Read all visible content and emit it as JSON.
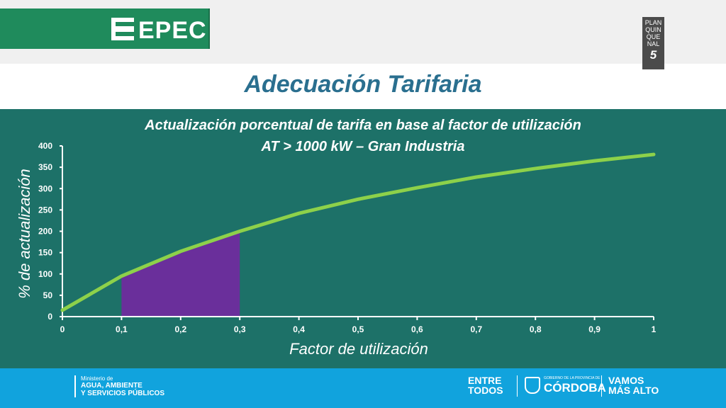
{
  "header": {
    "logo_text": "EPEC",
    "badge_lines": [
      "PLAN",
      "QUIN",
      "QUE",
      "NAL"
    ],
    "badge_number": "5"
  },
  "slide_title": "Adecuación Tarifaria",
  "footer": {
    "ministry_small": "Ministerio de",
    "ministry_line1": "AGUA, AMBIENTE",
    "ministry_line2": "Y SERVICIOS PÚBLICOS",
    "entre_line1": "ENTRE",
    "entre_line2": "TODOS",
    "cordoba_small": "GOBIERNO DE LA PROVINCIA DE",
    "cordoba_big": "CÓRDOBA",
    "vamos_line1": "VAMOS",
    "vamos_line2": "MÁS ALTO"
  },
  "colors": {
    "line": "#8dd14a",
    "shaded_area": "#6a2f9b",
    "panel": "#1d7168",
    "title": "#2a6f8f"
  },
  "chart_data": {
    "type": "line",
    "title": "Actualización porcentual de tarifa en base al factor de utilización",
    "subtitle": "AT > 1000 kW – Gran Industria",
    "xlabel": "Factor de utilización",
    "ylabel": "% de actualización",
    "x": [
      0,
      0.1,
      0.2,
      0.3,
      0.4,
      0.5,
      0.6,
      0.7,
      0.8,
      0.9,
      1
    ],
    "values": [
      15,
      95,
      153,
      200,
      242,
      275,
      302,
      327,
      347,
      365,
      380
    ],
    "xlim": [
      0,
      1
    ],
    "ylim": [
      0,
      400
    ],
    "x_tick_labels": [
      "0",
      "0,1",
      "0,2",
      "0,3",
      "0,4",
      "0,5",
      "0,6",
      "0,7",
      "0,8",
      "0,9",
      "1"
    ],
    "y_ticks": [
      0,
      50,
      100,
      150,
      200,
      250,
      300,
      350,
      400
    ],
    "shaded_range": [
      0.1,
      0.3
    ],
    "grid": false
  }
}
